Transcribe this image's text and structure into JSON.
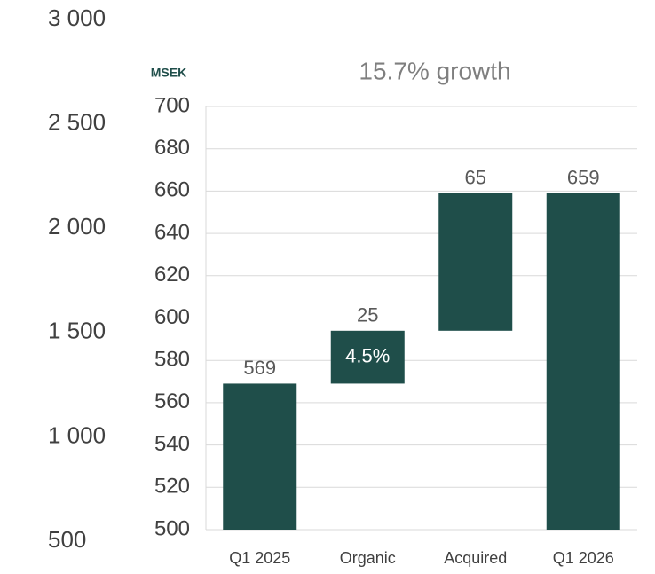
{
  "chart_data": {
    "type": "waterfall",
    "title": "15.7% growth",
    "y_label": "MSEK",
    "categories": [
      "Q1 2025",
      "Organic",
      "Acquired",
      "Q1 2026"
    ],
    "values": [
      569,
      25,
      65,
      659
    ],
    "measures": [
      "total",
      "relative",
      "relative",
      "total"
    ],
    "inner_labels": [
      null,
      "4.5%",
      null,
      null
    ],
    "color": "#1f4e4a",
    "ylim": [
      500,
      700
    ],
    "yticks": [
      500,
      520,
      540,
      560,
      580,
      600,
      620,
      640,
      660,
      680,
      700
    ],
    "y2lim": [
      500,
      3000
    ],
    "y2ticks": [
      500,
      {
        "value": 1000,
        "label": "1 000"
      },
      {
        "value": 1500,
        "label": "1 500"
      },
      {
        "value": 2000,
        "label": "2 000"
      },
      {
        "value": 2500,
        "label": "2 500"
      },
      {
        "value": 3000,
        "label": "3 000"
      }
    ],
    "grid": true
  }
}
